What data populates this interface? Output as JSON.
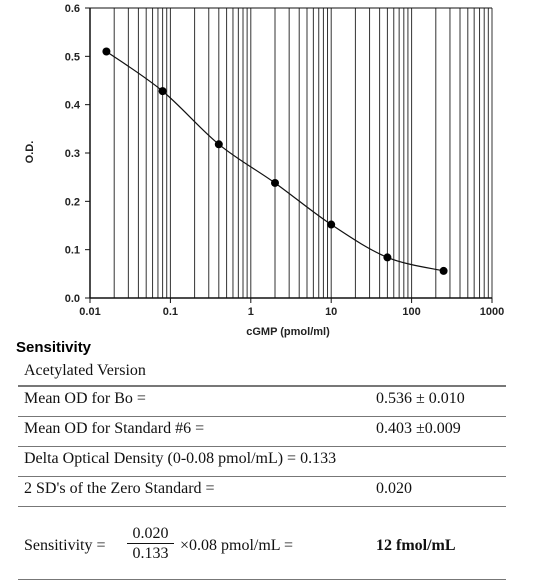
{
  "chart_data": {
    "type": "line",
    "xscale": "log",
    "xlim": [
      0.01,
      1000
    ],
    "ylim": [
      0,
      0.6
    ],
    "xlabel": "cGMP (pmol/ml)",
    "ylabel": "O.D.",
    "xticks": [
      "0.01",
      "0.1",
      "1",
      "10",
      "100",
      "1000"
    ],
    "yticks": [
      "0.0",
      "0.1",
      "0.2",
      "0.3",
      "0.4",
      "0.5",
      "0.6"
    ],
    "grid": "vertical-log",
    "series": [
      {
        "x": [
          0.016,
          0.08,
          0.4,
          2,
          10,
          50,
          250
        ],
        "y": [
          0.51,
          0.428,
          0.318,
          0.238,
          0.152,
          0.084,
          0.056
        ]
      }
    ]
  },
  "sensitivity": {
    "title": "Sensitivity",
    "header": "Acetylated Version",
    "rows": [
      {
        "label": "Mean OD for Bo =",
        "value": "0.536 ± 0.010"
      },
      {
        "label": "Mean OD for Standard #6 =",
        "value": "0.403 ±0.009"
      },
      {
        "label": "Delta Optical Density (0-0.08 pmol/mL) = 0.133",
        "value": ""
      },
      {
        "label": "2 SD's of the Zero Standard =",
        "value": "0.020"
      }
    ],
    "formula": {
      "label": "Sensitivity =",
      "numerator": "0.020",
      "denominator": "0.133",
      "multiplier": "×0.08 pmol/mL =",
      "result": "12 fmol/mL"
    }
  }
}
